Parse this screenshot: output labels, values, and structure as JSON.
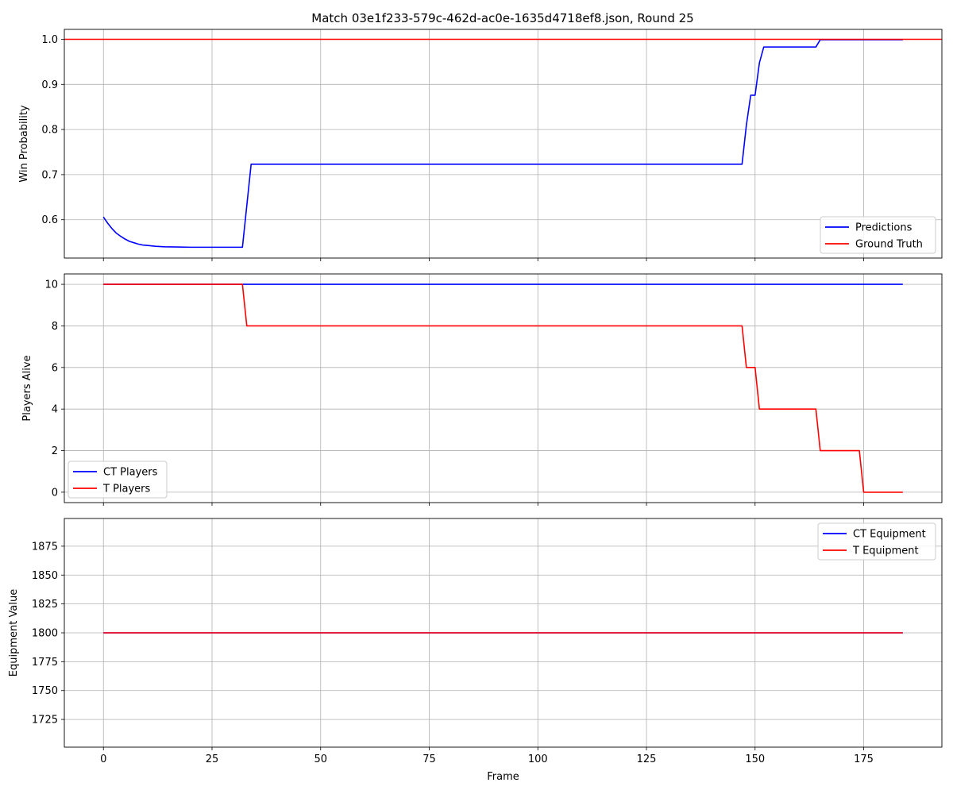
{
  "chart_data": [
    {
      "type": "line",
      "title": "Match 03e1f233-579c-462d-ac0e-1635d4718ef8.json, Round 25",
      "xlabel": "",
      "ylabel": "Win Probability",
      "xlim": [
        -9,
        193
      ],
      "ylim": [
        0.515,
        1.022
      ],
      "xticks": [
        0,
        25,
        50,
        75,
        100,
        125,
        150,
        175
      ],
      "yticks": [
        0.6,
        0.7,
        0.8,
        0.9,
        1.0
      ],
      "ytick_labels": [
        "0.6",
        "0.7",
        "0.8",
        "0.9",
        "1.0"
      ],
      "show_xtick_labels": false,
      "grid": true,
      "legend": "lower-right",
      "series": [
        {
          "name": "Predictions",
          "color": "#0000ff",
          "points": [
            [
              0,
              0.606
            ],
            [
              1,
              0.592
            ],
            [
              2,
              0.58
            ],
            [
              3,
              0.57
            ],
            [
              4,
              0.563
            ],
            [
              5,
              0.557
            ],
            [
              6,
              0.552
            ],
            [
              7,
              0.549
            ],
            [
              8,
              0.546
            ],
            [
              9,
              0.544
            ],
            [
              10,
              0.543
            ],
            [
              12,
              0.541
            ],
            [
              14,
              0.54
            ],
            [
              17,
              0.5395
            ],
            [
              20,
              0.539
            ],
            [
              32,
              0.539
            ],
            [
              34,
              0.723
            ],
            [
              147,
              0.723
            ],
            [
              148,
              0.81
            ],
            [
              149,
              0.876
            ],
            [
              150,
              0.876
            ],
            [
              151,
              0.948
            ],
            [
              152,
              0.983
            ],
            [
              164,
              0.983
            ],
            [
              165,
              0.999
            ],
            [
              184,
              0.999
            ]
          ]
        },
        {
          "name": "Ground Truth",
          "color": "#ff0000",
          "points": [
            [
              -9,
              1.0
            ],
            [
              193,
              1.0
            ]
          ]
        }
      ]
    },
    {
      "type": "line",
      "xlabel": "",
      "ylabel": "Players Alive",
      "xlim": [
        -9,
        193
      ],
      "ylim": [
        -0.5,
        10.5
      ],
      "xticks": [
        0,
        25,
        50,
        75,
        100,
        125,
        150,
        175
      ],
      "yticks": [
        0,
        2,
        4,
        6,
        8,
        10
      ],
      "ytick_labels": [
        "0",
        "2",
        "4",
        "6",
        "8",
        "10"
      ],
      "show_xtick_labels": false,
      "grid": true,
      "legend": "lower-left",
      "series": [
        {
          "name": "CT Players",
          "color": "#0000ff",
          "points": [
            [
              0,
              10
            ],
            [
              184,
              10
            ]
          ]
        },
        {
          "name": "T Players",
          "color": "#ff0000",
          "points": [
            [
              0,
              10
            ],
            [
              32,
              10
            ],
            [
              33,
              8
            ],
            [
              147,
              8
            ],
            [
              148,
              6
            ],
            [
              150,
              6
            ],
            [
              151,
              4
            ],
            [
              164,
              4
            ],
            [
              165,
              2
            ],
            [
              174,
              2
            ],
            [
              175,
              0
            ],
            [
              184,
              0
            ]
          ]
        }
      ]
    },
    {
      "type": "line",
      "xlabel": "Frame",
      "ylabel": "Equipment Value",
      "xlim": [
        -9,
        193
      ],
      "ylim": [
        1701,
        1899
      ],
      "xticks": [
        0,
        25,
        50,
        75,
        100,
        125,
        150,
        175
      ],
      "xtick_labels": [
        "0",
        "25",
        "50",
        "75",
        "100",
        "125",
        "150",
        "175"
      ],
      "yticks": [
        1725,
        1750,
        1775,
        1800,
        1825,
        1850,
        1875
      ],
      "ytick_labels": [
        "1725",
        "1750",
        "1775",
        "1800",
        "1825",
        "1850",
        "1875"
      ],
      "show_xtick_labels": true,
      "grid": true,
      "legend": "upper-right",
      "series": [
        {
          "name": "CT Equipment",
          "color": "#0000ff",
          "points": [
            [
              0,
              1800
            ],
            [
              184,
              1800
            ]
          ]
        },
        {
          "name": "T Equipment",
          "color": "#ff0000",
          "points": [
            [
              0,
              1800
            ],
            [
              184,
              1800
            ]
          ]
        }
      ]
    }
  ]
}
